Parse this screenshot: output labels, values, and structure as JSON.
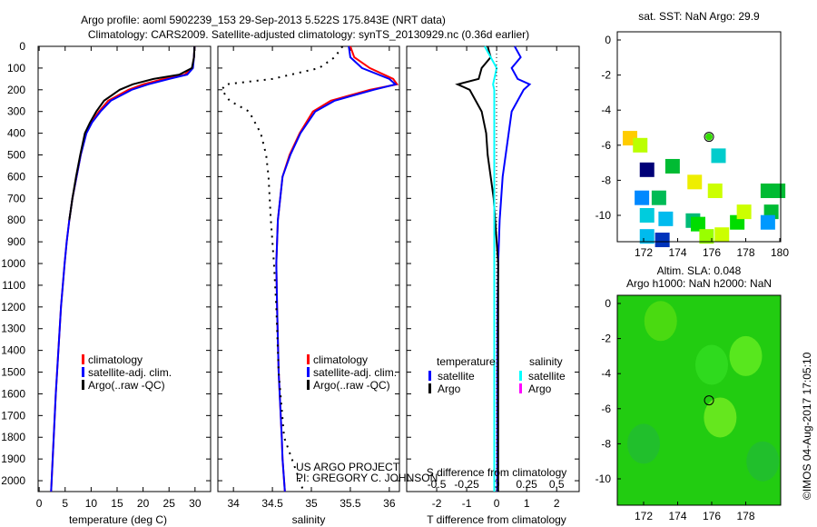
{
  "chart_data": [
    {
      "type": "line",
      "title": "Argo profile: aoml 5902239_153 29-Sep-2013 5.522S 175.843E (NRT data)",
      "subtitle": "Climatology: CARS2009. Satellite-adjusted climatology: synTS_20130929.nc (0.36d earlier)",
      "xlabel": "temperature (deg C)",
      "ylabel": "",
      "xlim": [
        -0.2,
        33
      ],
      "ylim": [
        2050,
        0
      ],
      "xticks": [
        "0",
        "5",
        "10",
        "15",
        "20",
        "25",
        "30"
      ],
      "yticks": [
        "0",
        "100",
        "200",
        "300",
        "400",
        "500",
        "600",
        "700",
        "800",
        "900",
        "1000",
        "1100",
        "1200",
        "1300",
        "1400",
        "1500",
        "1600",
        "1700",
        "1800",
        "1900",
        "2000"
      ],
      "legend": [
        "climatology",
        "satellite-adj. clim.",
        "Argo(..raw -QC)"
      ],
      "depth": [
        0,
        50,
        100,
        130,
        150,
        175,
        200,
        250,
        300,
        350,
        400,
        500,
        600,
        700,
        800,
        900,
        1000,
        1200,
        1400,
        1600,
        1800,
        2000,
        2050
      ],
      "series": [
        {
          "name": "climatology",
          "color": "#ff0000",
          "values": [
            29.9,
            29.8,
            29.5,
            28,
            24,
            20,
            17.2,
            13.3,
            11.5,
            10,
            9,
            8,
            7.2,
            6.4,
            5.8,
            5.3,
            4.9,
            4.2,
            3.7,
            3.2,
            2.8,
            2.4,
            2.3
          ]
        },
        {
          "name": "satellite-adj. clim.",
          "color": "#0000ff",
          "values": [
            29.9,
            29.8,
            29.6,
            28.5,
            25,
            21,
            17.8,
            13.8,
            11.8,
            10.2,
            9.1,
            8,
            7.2,
            6.4,
            5.8,
            5.3,
            4.9,
            4.2,
            3.7,
            3.2,
            2.8,
            2.4,
            2.3
          ]
        },
        {
          "name": "Argo(..raw -QC)",
          "color": "#000000",
          "values": [
            29.9,
            29.8,
            29.4,
            27,
            22,
            18,
            15.5,
            12.5,
            11,
            9.8,
            8.8,
            7.9,
            7.1,
            6.4,
            5.8,
            null,
            null,
            null,
            null,
            null,
            null,
            null,
            null
          ]
        }
      ]
    },
    {
      "type": "line",
      "xlabel": "salinity",
      "xlim": [
        33.8,
        36.13
      ],
      "ylim": [
        2050,
        0
      ],
      "xticks": [
        "34",
        "34.5",
        "35",
        "35.5",
        "36"
      ],
      "legend": [
        "climatology",
        "satellite-adj. clim.",
        "Argo(..raw -QC)"
      ],
      "annotation": [
        "US ARGO PROJECT",
        "PI: GREGORY C. JOHNSON"
      ],
      "depth": [
        0,
        50,
        100,
        150,
        175,
        200,
        250,
        300,
        400,
        500,
        600,
        800,
        1000,
        1200,
        1500,
        1800,
        1900,
        2000,
        2050
      ],
      "series": [
        {
          "name": "climatology",
          "color": "#ff0000",
          "values": [
            35.5,
            35.55,
            35.75,
            36.05,
            36.1,
            35.75,
            35.25,
            35.02,
            34.85,
            34.72,
            34.63,
            34.57,
            34.55,
            34.56,
            34.58,
            34.62,
            34.63,
            34.65,
            34.66
          ]
        },
        {
          "name": "satellite-adj. clim.",
          "color": "#0000ff",
          "values": [
            35.48,
            35.5,
            35.65,
            36.0,
            36.08,
            35.8,
            35.3,
            35.05,
            34.86,
            34.73,
            34.63,
            34.57,
            34.55,
            34.56,
            34.58,
            34.62,
            34.63,
            34.65,
            34.66
          ]
        },
        {
          "name": "Argo(..raw -QC)",
          "color": "#000000",
          "values": [
            35.4,
            35.3,
            35.1,
            34.5,
            33.9,
            33.85,
            33.95,
            34.2,
            34.35,
            34.42,
            34.45,
            34.48,
            34.52,
            34.55,
            34.58,
            34.65,
            34.75,
            34.85,
            34.9
          ]
        }
      ]
    },
    {
      "type": "line",
      "xlabel": "T difference from climatology",
      "xlabel2": "S difference from climatology",
      "xlim": [
        -3,
        2.75
      ],
      "ylim": [
        2050,
        0
      ],
      "xticks": [
        "-2",
        "-1",
        "0",
        "1",
        "2"
      ],
      "xticks2": [
        "-0.5",
        "-0.25",
        "0",
        "0.25",
        "0.5"
      ],
      "legend_temperature": {
        "title": "temperature",
        "items": [
          "satellite",
          "Argo"
        ]
      },
      "legend_salinity": {
        "title": "salinity",
        "items": [
          "satellite",
          "Argo"
        ]
      },
      "depth": [
        0,
        50,
        100,
        150,
        175,
        200,
        250,
        300,
        400,
        500,
        600,
        700,
        800,
        1000,
        1200,
        1500,
        1800,
        2000,
        2050
      ],
      "series": [
        {
          "name": "T satellite",
          "color": "#0000ff",
          "values": [
            0.6,
            0.8,
            0.5,
            0.7,
            1.1,
            0.9,
            0.7,
            0.5,
            0.4,
            0.3,
            0.2,
            0.15,
            0.1,
            0.05,
            0.03,
            0.02,
            0.02,
            0.02,
            0.02
          ]
        },
        {
          "name": "T Argo",
          "color": "#000000",
          "values": [
            -0.3,
            -0.2,
            -0.5,
            -0.6,
            -1.3,
            -0.9,
            -0.7,
            -0.5,
            -0.35,
            -0.3,
            -0.2,
            -0.1,
            -0.05,
            0.05,
            0.05,
            0.05,
            0.05,
            0.05,
            0.05
          ]
        },
        {
          "name": "S satellite",
          "color": "#00ffff",
          "values": [
            -0.1,
            -0.05,
            0,
            -0.02,
            -0.03,
            -0.02,
            -0.02,
            -0.02,
            -0.02,
            -0.02,
            -0.02,
            -0.02,
            -0.02,
            -0.02,
            -0.02,
            -0.02,
            -0.02,
            -0.02,
            -0.02
          ]
        }
      ]
    },
    {
      "type": "scatter",
      "title": "sat. SST: NaN Argo: 29.9",
      "xticks": [
        "172",
        "174",
        "176",
        "178",
        "180"
      ],
      "yticks": [
        "0",
        "-2",
        "-4",
        "-6",
        "-8",
        "-10"
      ],
      "float": {
        "lon": 175.843,
        "lat": -5.522,
        "color": "#33dd00"
      },
      "points": [
        {
          "lon": 171.2,
          "lat": -5.6,
          "color": "#ffcc00"
        },
        {
          "lon": 171.8,
          "lat": -6.0,
          "color": "#bbff00"
        },
        {
          "lon": 172.2,
          "lat": -7.4,
          "color": "#000077"
        },
        {
          "lon": 173.7,
          "lat": -7.2,
          "color": "#00bb33"
        },
        {
          "lon": 176.4,
          "lat": -6.6,
          "color": "#00cccc"
        },
        {
          "lon": 175.0,
          "lat": -8.1,
          "color": "#eeee00"
        },
        {
          "lon": 171.9,
          "lat": -9.0,
          "color": "#0088ff"
        },
        {
          "lon": 172.9,
          "lat": -9.0,
          "color": "#00bb55"
        },
        {
          "lon": 176.2,
          "lat": -8.6,
          "color": "#ccff00"
        },
        {
          "lon": 179.3,
          "lat": -8.6,
          "color": "#00bb33"
        },
        {
          "lon": 179.9,
          "lat": -8.6,
          "color": "#00bb33"
        },
        {
          "lon": 172.2,
          "lat": -10.0,
          "color": "#00ccdd"
        },
        {
          "lon": 173.3,
          "lat": -10.2,
          "color": "#00bbee"
        },
        {
          "lon": 174.9,
          "lat": -10.3,
          "color": "#00bb77"
        },
        {
          "lon": 175.2,
          "lat": -10.5,
          "color": "#00dd00"
        },
        {
          "lon": 177.5,
          "lat": -10.4,
          "color": "#00dd00"
        },
        {
          "lon": 177.9,
          "lat": -9.8,
          "color": "#ccff00"
        },
        {
          "lon": 179.5,
          "lat": -9.8,
          "color": "#00bb33"
        },
        {
          "lon": 179.3,
          "lat": -10.4,
          "color": "#0099ff"
        },
        {
          "lon": 172.2,
          "lat": -11.2,
          "color": "#00bbee"
        },
        {
          "lon": 173.1,
          "lat": -11.4,
          "color": "#0033bb"
        },
        {
          "lon": 175.7,
          "lat": -11.2,
          "color": "#99ff00"
        },
        {
          "lon": 176.6,
          "lat": -11.1,
          "color": "#ccff00"
        }
      ]
    },
    {
      "type": "heatmap",
      "title": "Altim. SLA: 0.048",
      "subtitle": "Argo h1000: NaN h2000: NaN",
      "xticks": [
        "172",
        "174",
        "176",
        "178"
      ],
      "yticks": [
        "0",
        "-2",
        "-4",
        "-6",
        "-8",
        "-10"
      ],
      "float": {
        "lon": 175.843,
        "lat": -5.522
      }
    }
  ],
  "credit": "©IMOS 04-Aug-2017 17:05:10"
}
